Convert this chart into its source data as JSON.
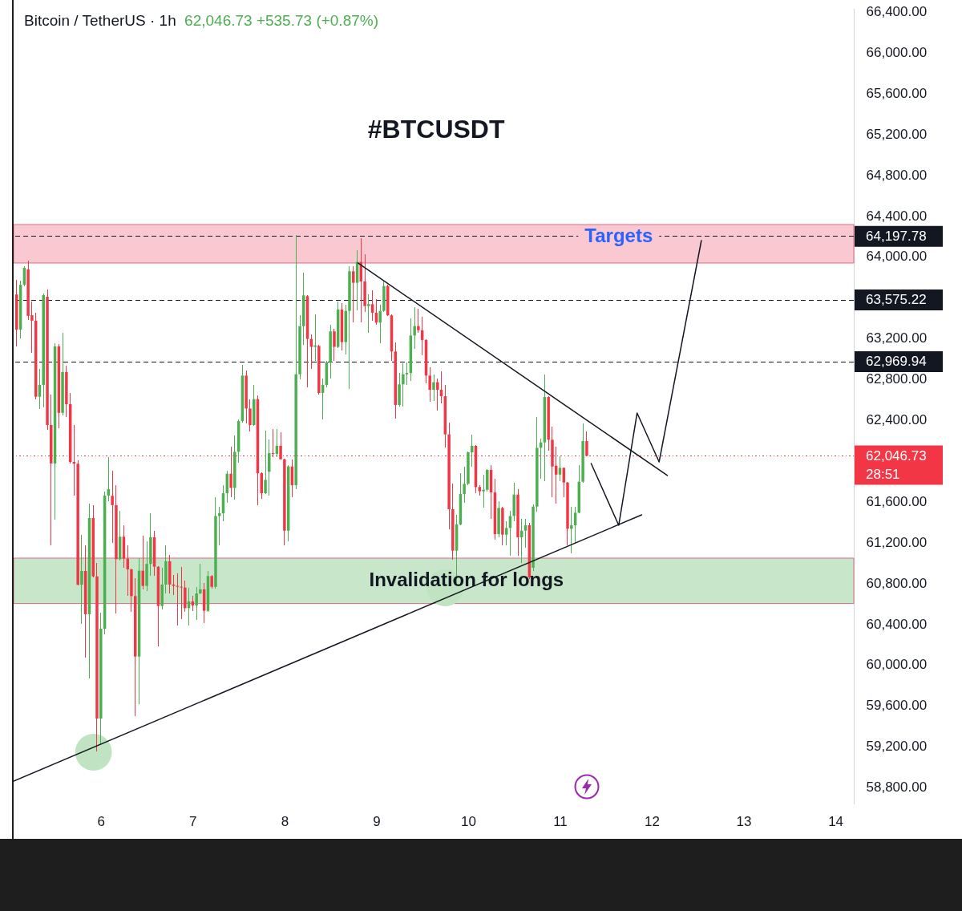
{
  "chart_data": {
    "type": "candlestick",
    "title": "#BTCUSDT",
    "subtitle": "Bitcoin / TetherUS · 1h",
    "annotations": [
      "62,046.73 +535.73 (+0.87%)",
      {
        "text": "Targets",
        "x": 11.64,
        "y": 64197.78
      }
    ],
    "x": [
      5.083,
      5.125,
      5.167,
      5.208,
      5.25,
      5.292,
      5.333,
      5.375,
      5.417,
      5.458,
      5.5,
      5.542,
      5.583,
      5.625,
      5.667,
      5.708,
      5.75,
      5.792,
      5.833,
      5.875,
      5.917,
      5.958,
      6,
      6.042,
      6.083,
      6.125,
      6.167,
      6.208,
      6.25,
      6.292,
      6.333,
      6.375,
      6.417,
      6.458,
      6.5,
      6.542,
      6.583,
      6.625,
      6.667,
      6.708,
      6.75,
      6.792,
      6.833,
      6.875,
      6.917,
      6.958,
      7,
      7.042,
      7.083,
      7.125,
      7.167,
      7.208,
      7.25,
      7.292,
      7.333,
      7.375,
      7.417,
      7.458,
      7.5,
      7.542,
      7.583,
      7.625,
      7.667,
      7.708,
      7.75,
      7.792,
      7.833,
      7.875,
      7.917,
      7.958,
      8,
      8.042,
      8.083,
      8.125,
      8.167,
      8.208,
      8.25,
      8.292,
      8.333,
      8.375,
      8.417,
      8.458,
      8.5,
      8.542,
      8.583,
      8.625,
      8.667,
      8.708,
      8.75,
      8.792,
      8.833,
      8.875,
      8.917,
      8.958,
      9,
      9.042,
      9.083,
      9.125,
      9.167,
      9.208,
      9.25,
      9.292,
      9.333,
      9.375,
      9.417,
      9.458,
      9.5,
      9.542,
      9.583,
      9.625,
      9.667,
      9.708,
      9.75,
      9.792,
      9.833,
      9.875,
      9.917,
      9.958,
      10,
      10.042,
      10.083,
      10.125,
      10.167,
      10.208,
      10.25,
      10.292,
      10.333,
      10.375,
      10.417,
      10.458,
      10.5,
      10.542,
      10.583,
      10.625,
      10.667,
      10.708,
      10.75,
      10.792,
      10.833,
      10.875,
      10.917,
      10.958,
      11,
      11.042,
      11.083,
      11.125,
      11.167,
      11.208,
      11.25,
      11.292
    ],
    "ohlc": [
      [
        63629,
        63774,
        63120,
        63284
      ],
      [
        63284,
        63765,
        63199,
        63724
      ],
      [
        63724,
        63906,
        63708,
        63890
      ],
      [
        63875,
        63960,
        63381,
        63419
      ],
      [
        63425,
        63560,
        63057,
        63372
      ],
      [
        63372,
        63450,
        62601,
        62627
      ],
      [
        62627,
        62900,
        62507,
        62743
      ],
      [
        62743,
        63639,
        62523,
        63623
      ],
      [
        63607,
        63677,
        62303,
        62350
      ],
      [
        62350,
        62649,
        61171,
        61973
      ],
      [
        61973,
        63150,
        61422,
        63120
      ],
      [
        63120,
        63140,
        62318,
        62469
      ],
      [
        62469,
        63255,
        62440,
        62869
      ],
      [
        62869,
        62931,
        62428,
        62554
      ],
      [
        62554,
        62664,
        61975,
        61988
      ],
      [
        61988,
        62350,
        61658,
        61970
      ],
      [
        61970,
        62000,
        60778,
        60784
      ],
      [
        60784,
        61272,
        60401,
        60919
      ],
      [
        60919,
        61171,
        60071,
        60495
      ],
      [
        60495,
        61580,
        59866,
        61438
      ],
      [
        61438,
        61564,
        60857,
        60866
      ],
      [
        60866,
        60998,
        59150,
        59473
      ],
      [
        59473,
        60511,
        59222,
        60354
      ],
      [
        60354,
        61700,
        60300,
        61658
      ],
      [
        61658,
        62035,
        61600,
        61720
      ],
      [
        61656,
        61900,
        61197,
        61564
      ],
      [
        61564,
        61760,
        60503,
        61035
      ],
      [
        61035,
        61512,
        61020,
        61255
      ],
      [
        61255,
        61367,
        60948,
        61040
      ],
      [
        61040,
        61171,
        60673,
        60935
      ],
      [
        60935,
        60940,
        60516,
        60673
      ],
      [
        60673,
        60851,
        59494,
        60081
      ],
      [
        60081,
        61045,
        59612,
        60922
      ],
      [
        60922,
        61263,
        60740,
        60773
      ],
      [
        60773,
        61210,
        60720,
        60988
      ],
      [
        60988,
        61485,
        60870,
        61250
      ],
      [
        61250,
        61315,
        60870,
        60961
      ],
      [
        60961,
        60966,
        60181,
        60576
      ],
      [
        60576,
        60948,
        60542,
        60786
      ],
      [
        60786,
        61171,
        60699,
        61014
      ],
      [
        61014,
        61079,
        60699,
        60786
      ],
      [
        60786,
        60883,
        60681,
        60773
      ],
      [
        60773,
        60896,
        60385,
        60765
      ],
      [
        60765,
        60961,
        60451,
        60757
      ],
      [
        60757,
        60825,
        60520,
        60555
      ],
      [
        60555,
        60757,
        60385,
        60621
      ],
      [
        60621,
        60673,
        60529,
        60581
      ],
      [
        60581,
        60765,
        60437,
        60699
      ],
      [
        60699,
        60988,
        60690,
        60739
      ],
      [
        60739,
        60805,
        60411,
        60529
      ],
      [
        60528,
        60921,
        60520,
        60869
      ],
      [
        60869,
        60880,
        60750,
        60764
      ],
      [
        60764,
        61642,
        60746,
        61458
      ],
      [
        61458,
        61550,
        61170,
        61484
      ],
      [
        61484,
        61759,
        61406,
        61681
      ],
      [
        61681,
        61904,
        61590,
        61872
      ],
      [
        61872,
        62139,
        61642,
        61733
      ],
      [
        61733,
        62244,
        61615,
        62087
      ],
      [
        62087,
        62401,
        61982,
        62388
      ],
      [
        62388,
        62938,
        62375,
        62834
      ],
      [
        62834,
        62886,
        62362,
        62511
      ],
      [
        62511,
        62598,
        62284,
        62349
      ],
      [
        62349,
        62742,
        62340,
        62603
      ],
      [
        62603,
        62637,
        61563,
        61877
      ],
      [
        61877,
        61882,
        61628,
        61681
      ],
      [
        61681,
        62297,
        61670,
        61812
      ],
      [
        61891,
        62205,
        61655,
        62074
      ],
      [
        62074,
        62310,
        62035,
        62066
      ],
      [
        62066,
        62310,
        62035,
        62145
      ],
      [
        62145,
        62276,
        62008,
        62014
      ],
      [
        62014,
        62022,
        61170,
        61314
      ],
      [
        61314,
        61956,
        61209,
        61943
      ],
      [
        61943,
        62008,
        61642,
        61759
      ],
      [
        61759,
        64209,
        61720,
        62847
      ],
      [
        62847,
        63423,
        62794,
        63318
      ],
      [
        63318,
        63842,
        63135,
        63620
      ],
      [
        63612,
        63620,
        62716,
        63193
      ],
      [
        63193,
        63240,
        62900,
        63115
      ],
      [
        63115,
        63437,
        62978,
        63130
      ],
      [
        63125,
        63135,
        62650,
        62664
      ],
      [
        62664,
        62808,
        62402,
        62743
      ],
      [
        62743,
        62978,
        62720,
        62965
      ],
      [
        62965,
        63332,
        62808,
        63267
      ],
      [
        63267,
        63293,
        62978,
        63115
      ],
      [
        63115,
        63560,
        63100,
        63481
      ],
      [
        63481,
        63542,
        63083,
        63162
      ],
      [
        63162,
        63529,
        63044,
        63468
      ],
      [
        63468,
        63909,
        62703,
        63856
      ],
      [
        63856,
        63909,
        63358,
        63743
      ],
      [
        63743,
        64066,
        63476,
        63948
      ],
      [
        63948,
        64184,
        63358,
        63757
      ],
      [
        63757,
        64026,
        63455,
        63515
      ],
      [
        63515,
        63633,
        63253,
        63534
      ],
      [
        63534,
        63673,
        63371,
        63450
      ],
      [
        63450,
        63581,
        63332,
        63353
      ],
      [
        63353,
        63529,
        63149,
        63468
      ],
      [
        63468,
        63764,
        63460,
        63712
      ],
      [
        63712,
        63725,
        63420,
        63424
      ],
      [
        63424,
        63437,
        62978,
        63070
      ],
      [
        63070,
        63162,
        62415,
        62546
      ],
      [
        62546,
        62860,
        62533,
        62748
      ],
      [
        62748,
        62957,
        62533,
        62847
      ],
      [
        62847,
        62965,
        62743,
        62860
      ],
      [
        62860,
        63397,
        62782,
        63227
      ],
      [
        63227,
        63502,
        63096,
        63319
      ],
      [
        63319,
        63489,
        63253,
        63279
      ],
      [
        63279,
        63410,
        63031,
        63183
      ],
      [
        63183,
        63188,
        62755,
        62834
      ],
      [
        62834,
        62913,
        62580,
        62695
      ],
      [
        62695,
        62847,
        62585,
        62769
      ],
      [
        62769,
        62808,
        62493,
        62695
      ],
      [
        62695,
        62873,
        62559,
        62632
      ],
      [
        62632,
        62742,
        62127,
        62258
      ],
      [
        62258,
        62376,
        61328,
        61524
      ],
      [
        61524,
        61773,
        61026,
        61118
      ],
      [
        61118,
        61472,
        60800,
        61375
      ],
      [
        61375,
        61878,
        61370,
        61673
      ],
      [
        61673,
        61943,
        61590,
        61773
      ],
      [
        61773,
        62092,
        61760,
        62082
      ],
      [
        62082,
        62258,
        61943,
        62145
      ],
      [
        62145,
        62153,
        61681,
        61742
      ],
      [
        61742,
        61760,
        61655,
        61700
      ],
      [
        61700,
        61865,
        61537,
        61715
      ],
      [
        61715,
        61917,
        61694,
        61909
      ],
      [
        61909,
        61956,
        61432,
        61689
      ],
      [
        61689,
        61825,
        61223,
        61280
      ],
      [
        61280,
        61600,
        61250,
        61537
      ],
      [
        61537,
        61545,
        61170,
        61275
      ],
      [
        61275,
        61406,
        61170,
        61340
      ],
      [
        61340,
        61511,
        61065,
        61458
      ],
      [
        61458,
        61786,
        61406,
        61668
      ],
      [
        61668,
        61720,
        61065,
        61249
      ],
      [
        61249,
        61432,
        61000,
        61314
      ],
      [
        61314,
        61432,
        61144,
        61367
      ],
      [
        61367,
        61393,
        60840,
        60856
      ],
      [
        60951,
        61570,
        60920,
        61550
      ],
      [
        61550,
        62428,
        61500,
        62126
      ],
      [
        62126,
        62218,
        61825,
        62179
      ],
      [
        62179,
        62847,
        61799,
        62624
      ],
      [
        62624,
        62630,
        62100,
        62205
      ],
      [
        62205,
        62336,
        61642,
        61943
      ],
      [
        61950,
        62140,
        61576,
        61864
      ],
      [
        61864,
        62040,
        61800,
        61930
      ],
      [
        61930,
        61935,
        61642,
        61786
      ],
      [
        61786,
        61790,
        61170,
        61333
      ],
      [
        61333,
        61550,
        61092,
        61367
      ],
      [
        61367,
        61550,
        61196,
        61490
      ],
      [
        61490,
        61956,
        61485,
        61794
      ],
      [
        61794,
        62362,
        61786,
        62192
      ],
      [
        62192,
        62284,
        62040,
        62046.73
      ]
    ],
    "colors": [
      "#f23645",
      "#4caf50",
      "#4caf50",
      "#f23645",
      "#f23645",
      "#f23645",
      "#4caf50",
      "#4caf50",
      "#f23645",
      "#f23645",
      "#4caf50",
      "#f23645",
      "#4caf50",
      "#f23645",
      "#f23645",
      "#f23645",
      "#f23645",
      "#4caf50",
      "#f23645",
      "#4caf50",
      "#f23645",
      "#f23645",
      "#4caf50",
      "#4caf50",
      "#4caf50",
      "#f23645",
      "#f23645",
      "#4caf50",
      "#f23645",
      "#f23645",
      "#f23645",
      "#f23645",
      "#4caf50",
      "#f23645",
      "#4caf50",
      "#4caf50",
      "#f23645",
      "#f23645",
      "#4caf50",
      "#4caf50",
      "#f23645",
      "#f23645",
      "#f23645",
      "#f23645",
      "#f23645",
      "#4caf50",
      "#f23645",
      "#4caf50",
      "#4caf50",
      "#f23645",
      "#4caf50",
      "#f23645",
      "#4caf50",
      "#4caf50",
      "#4caf50",
      "#4caf50",
      "#f23645",
      "#4caf50",
      "#4caf50",
      "#4caf50",
      "#f23645",
      "#f23645",
      "#4caf50",
      "#f23645",
      "#f23645",
      "#4caf50",
      "#4caf50",
      "#f23645",
      "#4caf50",
      "#f23645",
      "#f23645",
      "#4caf50",
      "#f23645",
      "#4caf50",
      "#4caf50",
      "#4caf50",
      "#f23645",
      "#f23645",
      "#4caf50",
      "#f23645",
      "#4caf50",
      "#4caf50",
      "#4caf50",
      "#f23645",
      "#4caf50",
      "#f23645",
      "#4caf50",
      "#4caf50",
      "#f23645",
      "#4caf50",
      "#f23645",
      "#f23645",
      "#4caf50",
      "#f23645",
      "#f23645",
      "#4caf50",
      "#4caf50",
      "#f23645",
      "#f23645",
      "#f23645",
      "#4caf50",
      "#4caf50",
      "#4caf50",
      "#4caf50",
      "#4caf50",
      "#f23645",
      "#f23645",
      "#f23645",
      "#f23645",
      "#4caf50",
      "#f23645",
      "#f23645",
      "#f23645",
      "#f23645",
      "#f23645",
      "#4caf50",
      "#4caf50",
      "#4caf50",
      "#4caf50",
      "#4caf50",
      "#f23645",
      "#f23645",
      "#4caf50",
      "#4caf50",
      "#f23645",
      "#f23645",
      "#4caf50",
      "#f23645",
      "#4caf50",
      "#4caf50",
      "#4caf50",
      "#f23645",
      "#4caf50",
      "#4caf50",
      "#f23645",
      "#4caf50",
      "#4caf50",
      "#4caf50",
      "#4caf50",
      "#f23645",
      "#f23645",
      "#f23645",
      "#4caf50",
      "#f23645",
      "#f23645",
      "#4caf50",
      "#4caf50",
      "#4caf50",
      "#4caf50",
      "#f23645"
    ],
    "series": [
      {
        "type": "scatter",
        "x": [
          5.92,
          9.75
        ],
        "values": [
          59143,
          60754
        ],
        "color": "#c0e3c2",
        "marker": "circle"
      },
      {
        "type": "line",
        "x": [
          5.05,
          11.89
        ],
        "values": [
          58860,
          61469
        ],
        "color": "#131722"
      },
      {
        "type": "line",
        "x": [
          8.8,
          12.17
        ],
        "values": [
          63937,
          61855
        ],
        "color": "#131722"
      },
      {
        "type": "line",
        "x": [
          11.34,
          11.64,
          11.84,
          12.08,
          12.54
        ],
        "values": [
          61972,
          61367,
          62467,
          61988,
          64157
        ],
        "color": "#131722"
      }
    ],
    "xlim": [
      5.05,
      14.2
    ],
    "xticks": [
      6,
      7,
      8,
      9,
      10,
      11,
      12,
      13,
      14
    ],
    "ylim": [
      58640,
      66436
    ],
    "yticks": [
      {
        "value": 58800,
        "label": "58,800.00"
      },
      {
        "value": 59200,
        "label": "59,200.00"
      },
      {
        "value": 59600,
        "label": "59,600.00"
      },
      {
        "value": 60000,
        "label": "60,000.00"
      },
      {
        "value": 60400,
        "label": "60,400.00"
      },
      {
        "value": 60800,
        "label": "60,800.00"
      },
      {
        "value": 61200,
        "label": "61,200.00"
      },
      {
        "value": 61600,
        "label": "61,600.00"
      },
      {
        "value": 62400,
        "label": "62,400.00"
      },
      {
        "value": 62800,
        "label": "62,800.00"
      },
      {
        "value": 63200,
        "label": "63,200.00"
      },
      {
        "value": 64000,
        "label": "64,000.00"
      },
      {
        "value": 64400,
        "label": "64,400.00"
      },
      {
        "value": 64800,
        "label": "64,800.00"
      },
      {
        "value": 65200,
        "label": "65,200.00"
      },
      {
        "value": 65600,
        "label": "65,600.00"
      },
      {
        "value": 66000,
        "label": "66,000.00"
      },
      {
        "value": 66400,
        "label": "66,400.00"
      }
    ],
    "ref_lines": [
      {
        "axis": "y",
        "value": 64197.78,
        "label": "64,197.78",
        "color": "#131722",
        "line_style": "dashed"
      },
      {
        "axis": "y",
        "value": 63575.22,
        "label": "63,575.22",
        "color": "#131722",
        "line_style": "dashed"
      },
      {
        "axis": "y",
        "value": 62969.94,
        "label": "62,969.94",
        "color": "#131722",
        "line_style": "dashed"
      },
      {
        "axis": "y",
        "value": 62046.73,
        "label": "62,046.73\n28:51",
        "color": "#f23645",
        "line_style": "dotted"
      }
    ],
    "bands": [
      {
        "axis": "y",
        "from": 63937,
        "to": 64314,
        "color": "#f9c8d0"
      },
      {
        "axis": "y",
        "from": 60600,
        "to": 61045,
        "label": "Invalidation for longs",
        "color": "#c8e6c9"
      }
    ]
  }
}
